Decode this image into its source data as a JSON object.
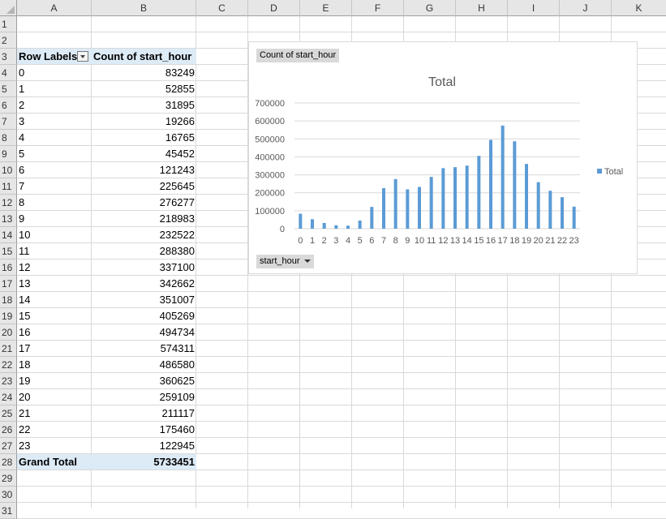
{
  "sheet": {
    "columns": [
      "A",
      "B",
      "C",
      "D",
      "E",
      "F",
      "G",
      "H",
      "I",
      "J",
      "K"
    ],
    "rows": [
      "1",
      "2",
      "3",
      "4",
      "5",
      "6",
      "7",
      "8",
      "9",
      "10",
      "11",
      "12",
      "13",
      "14",
      "15",
      "16",
      "17",
      "18",
      "19",
      "20",
      "21",
      "22",
      "23",
      "24",
      "25",
      "26",
      "27",
      "28",
      "29",
      "30",
      "31"
    ]
  },
  "pivot": {
    "row_labels_header": "Row Labels",
    "value_header": "Count of start_hour",
    "rows": [
      {
        "label": "0",
        "value": "83249"
      },
      {
        "label": "1",
        "value": "52855"
      },
      {
        "label": "2",
        "value": "31895"
      },
      {
        "label": "3",
        "value": "19266"
      },
      {
        "label": "4",
        "value": "16765"
      },
      {
        "label": "5",
        "value": "45452"
      },
      {
        "label": "6",
        "value": "121243"
      },
      {
        "label": "7",
        "value": "225645"
      },
      {
        "label": "8",
        "value": "276277"
      },
      {
        "label": "9",
        "value": "218983"
      },
      {
        "label": "10",
        "value": "232522"
      },
      {
        "label": "11",
        "value": "288380"
      },
      {
        "label": "12",
        "value": "337100"
      },
      {
        "label": "13",
        "value": "342662"
      },
      {
        "label": "14",
        "value": "351007"
      },
      {
        "label": "15",
        "value": "405269"
      },
      {
        "label": "16",
        "value": "494734"
      },
      {
        "label": "17",
        "value": "574311"
      },
      {
        "label": "18",
        "value": "486580"
      },
      {
        "label": "19",
        "value": "360625"
      },
      {
        "label": "20",
        "value": "259109"
      },
      {
        "label": "21",
        "value": "211117"
      },
      {
        "label": "22",
        "value": "175460"
      },
      {
        "label": "23",
        "value": "122945"
      }
    ],
    "grand_total_label": "Grand Total",
    "grand_total_value": "5733451"
  },
  "chart_buttons": {
    "values_field": "Count of start_hour",
    "axis_field": "start_hour"
  },
  "chart_data": {
    "type": "bar",
    "title": "Total",
    "categories": [
      "0",
      "1",
      "2",
      "3",
      "4",
      "5",
      "6",
      "7",
      "8",
      "9",
      "10",
      "11",
      "12",
      "13",
      "14",
      "15",
      "16",
      "17",
      "18",
      "19",
      "20",
      "21",
      "22",
      "23"
    ],
    "series": [
      {
        "name": "Total",
        "values": [
          83249,
          52855,
          31895,
          19266,
          16765,
          45452,
          121243,
          225645,
          276277,
          218983,
          232522,
          288380,
          337100,
          342662,
          351007,
          405269,
          494734,
          574311,
          486580,
          360625,
          259109,
          211117,
          175460,
          122945
        ]
      }
    ],
    "ylim": [
      0,
      700000
    ],
    "yticks": [
      "0",
      "100000",
      "200000",
      "300000",
      "400000",
      "500000",
      "600000",
      "700000"
    ],
    "grid": true,
    "legend_position": "right",
    "bar_color": "#5b9bd5"
  }
}
